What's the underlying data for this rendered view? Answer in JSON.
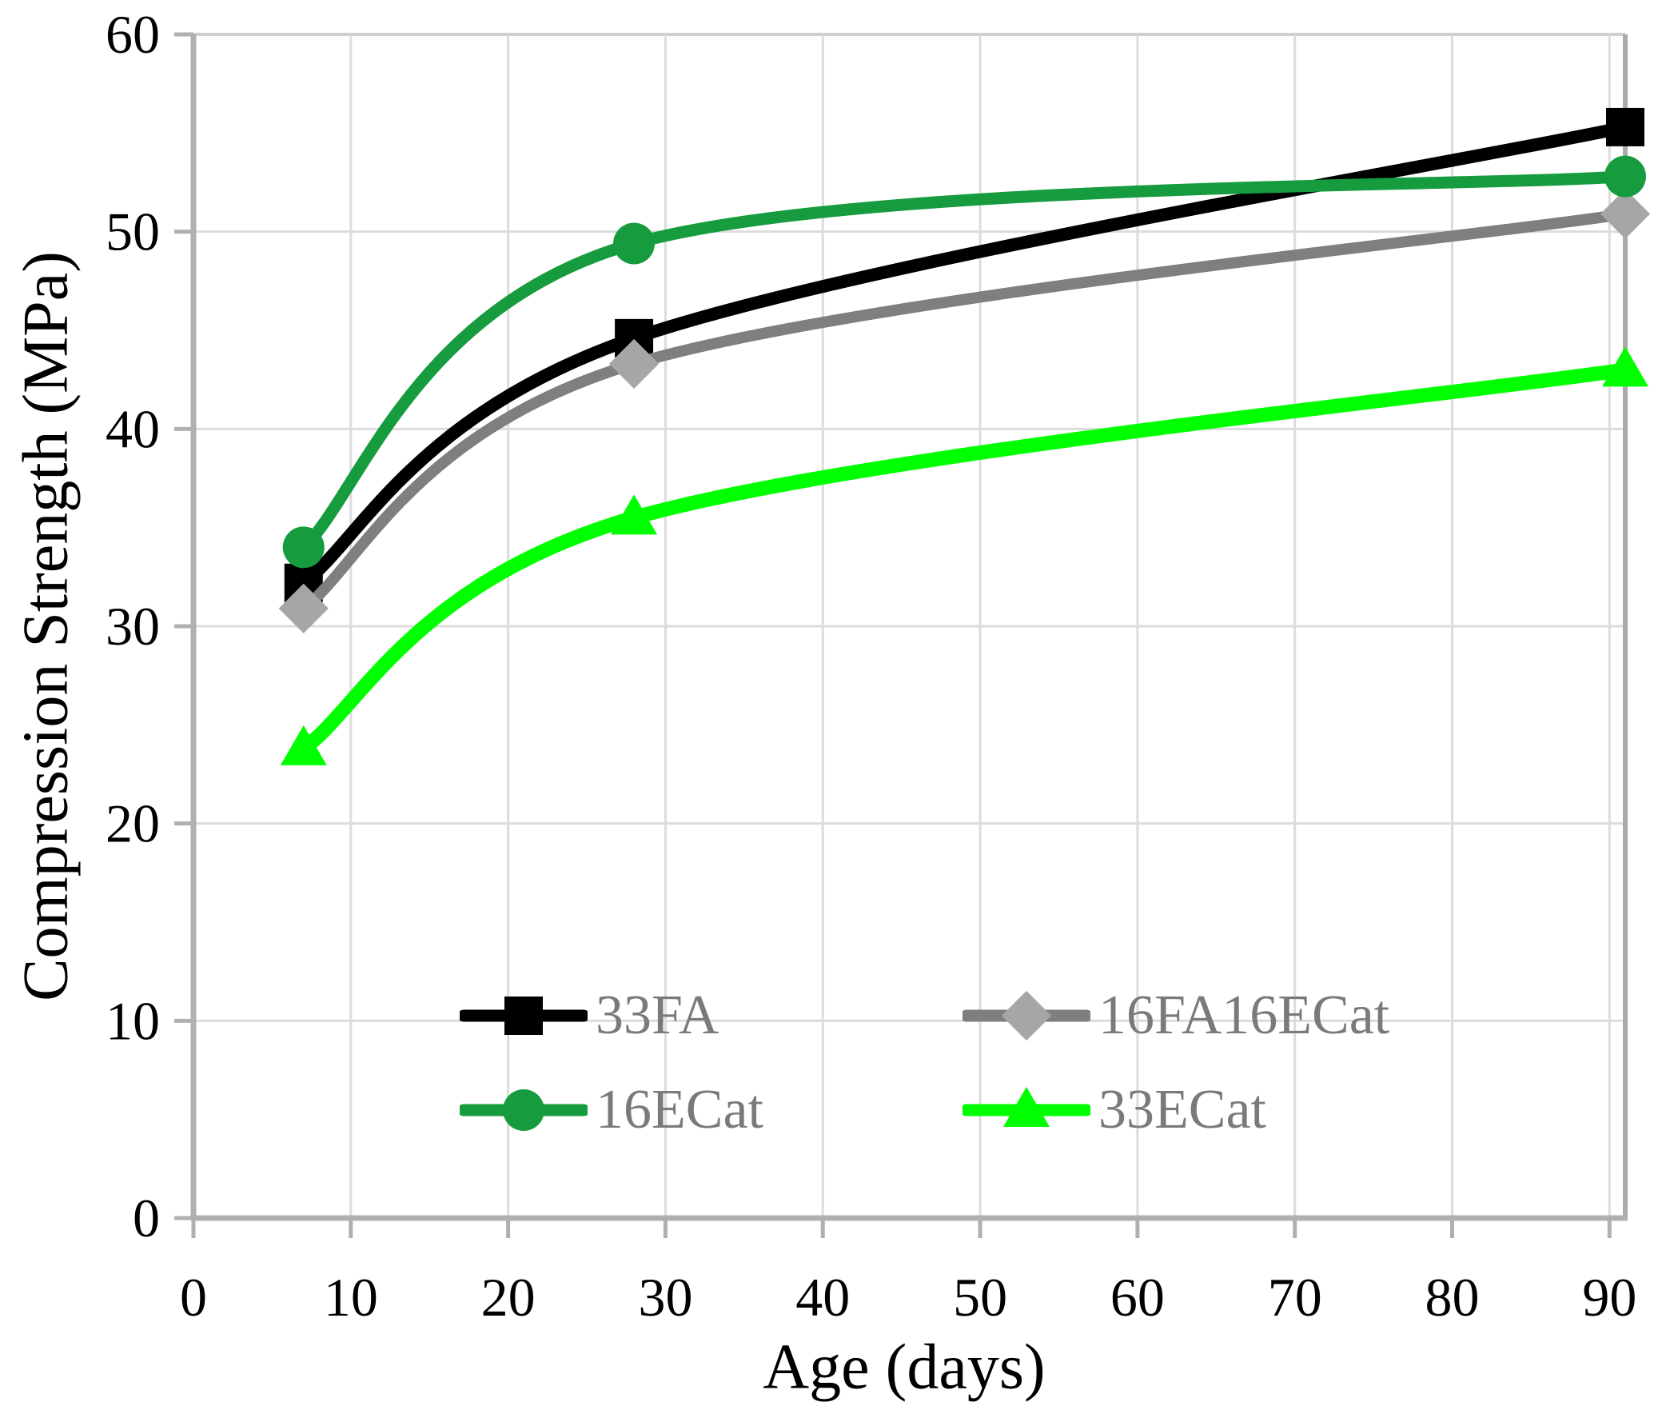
{
  "chart_data": {
    "type": "line",
    "title": "",
    "xlabel": "Age (days)",
    "ylabel": "Compression Strength (MPa)",
    "x": [
      7,
      28,
      91
    ],
    "series": [
      {
        "name": "33FA",
        "color": "#000000",
        "marker": "square",
        "marker_color": "#000000",
        "values": [
          32.2,
          44.6,
          55.3
        ]
      },
      {
        "name": "16FA16ECat",
        "color": "#7F7F7F",
        "marker": "diamond",
        "marker_color": "#A6A6A6",
        "values": [
          30.9,
          43.3,
          50.9
        ]
      },
      {
        "name": "16ECat",
        "color": "#169C3E",
        "marker": "circle",
        "marker_color": "#169C3E",
        "values": [
          34.0,
          49.4,
          52.8
        ]
      },
      {
        "name": "33ECat",
        "color": "#00FF00",
        "marker": "triangle",
        "marker_color": "#00FF00",
        "values": [
          23.8,
          35.5,
          43.0
        ]
      }
    ],
    "x_ticks": [
      0,
      10,
      20,
      30,
      40,
      50,
      60,
      70,
      80,
      90
    ],
    "y_ticks": [
      0,
      10,
      20,
      30,
      40,
      50,
      60
    ],
    "xlim": [
      0,
      91
    ],
    "ylim": [
      0,
      60
    ],
    "grid": true,
    "line_style": "smooth",
    "legend_position": "inside-bottom-center",
    "colors": {
      "gridline": "#DCDCDC",
      "top_border": "#CFCFCF",
      "right_border": "#ABABAB",
      "axis": "#B0B0B0",
      "tick_label": "#000000",
      "legend_text": "#7A7A7A"
    }
  }
}
